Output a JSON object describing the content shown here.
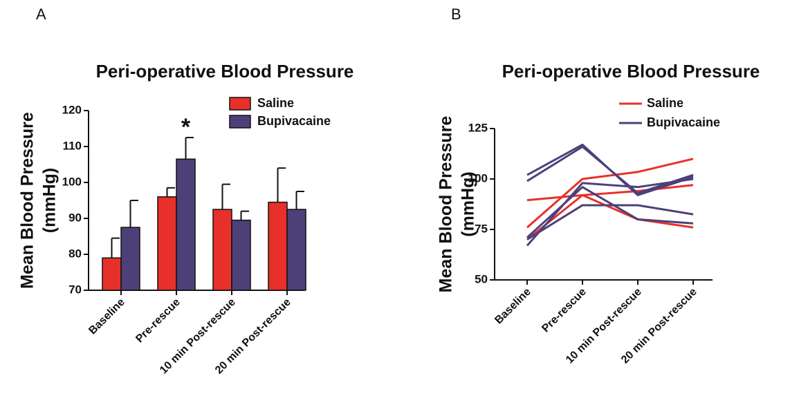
{
  "chart_data": [
    {
      "type": "bar",
      "panel": "A",
      "title": "Peri-operative Blood Pressure",
      "y_label": [
        "Mean Blood Pressure",
        "(mmHg)"
      ],
      "categories": [
        "Baseline",
        "Pre-rescue",
        "10 min Post-rescue",
        "20 min Post-rescue"
      ],
      "series": [
        {
          "name": "Saline",
          "color": "#e8302a",
          "values": [
            79,
            96,
            92.5,
            94.5
          ],
          "errors": [
            5.5,
            2.5,
            7,
            9.5
          ]
        },
        {
          "name": "Bupivacaine",
          "color": "#4d4079",
          "values": [
            87.5,
            106.5,
            89.5,
            92.5
          ],
          "errors": [
            7.5,
            6,
            2.5,
            5
          ]
        }
      ],
      "annotations": [
        {
          "text": "*",
          "category": 1
        }
      ],
      "ylim": [
        70,
        120
      ],
      "yticks": [
        70,
        80,
        90,
        100,
        110,
        120
      ]
    },
    {
      "type": "line",
      "panel": "B",
      "title": "Peri-operative Blood Pressure",
      "y_label": [
        "Mean Blood Pressure",
        "(mmHg)"
      ],
      "categories": [
        "Baseline",
        "Pre-rescue",
        "10 min Post-rescue",
        "20 min Post-rescue"
      ],
      "series": [
        {
          "name": "Saline",
          "color": "#e8302a",
          "values": [
            76,
            100,
            103.5,
            110
          ]
        },
        {
          "name": "Saline",
          "color": "#e8302a",
          "values": [
            89.5,
            92,
            94,
            97
          ]
        },
        {
          "name": "Saline",
          "color": "#e8302a",
          "values": [
            70,
            92,
            80,
            76
          ]
        },
        {
          "name": "Bupivacaine",
          "color": "#4d4079",
          "values": [
            102,
            117,
            92,
            101
          ]
        },
        {
          "name": "Bupivacaine",
          "color": "#4d4079",
          "values": [
            99,
            116,
            93,
            102
          ]
        },
        {
          "name": "Bupivacaine",
          "color": "#4d4079",
          "values": [
            67,
            98,
            96,
            100
          ]
        },
        {
          "name": "Bupivacaine",
          "color": "#4d4079",
          "values": [
            70,
            87,
            87,
            82.5
          ]
        },
        {
          "name": "Bupivacaine",
          "color": "#4d4079",
          "values": [
            71,
            96,
            80,
            78
          ]
        }
      ],
      "ylim": [
        50,
        125
      ],
      "yticks": [
        50,
        75,
        100,
        125
      ]
    }
  ]
}
